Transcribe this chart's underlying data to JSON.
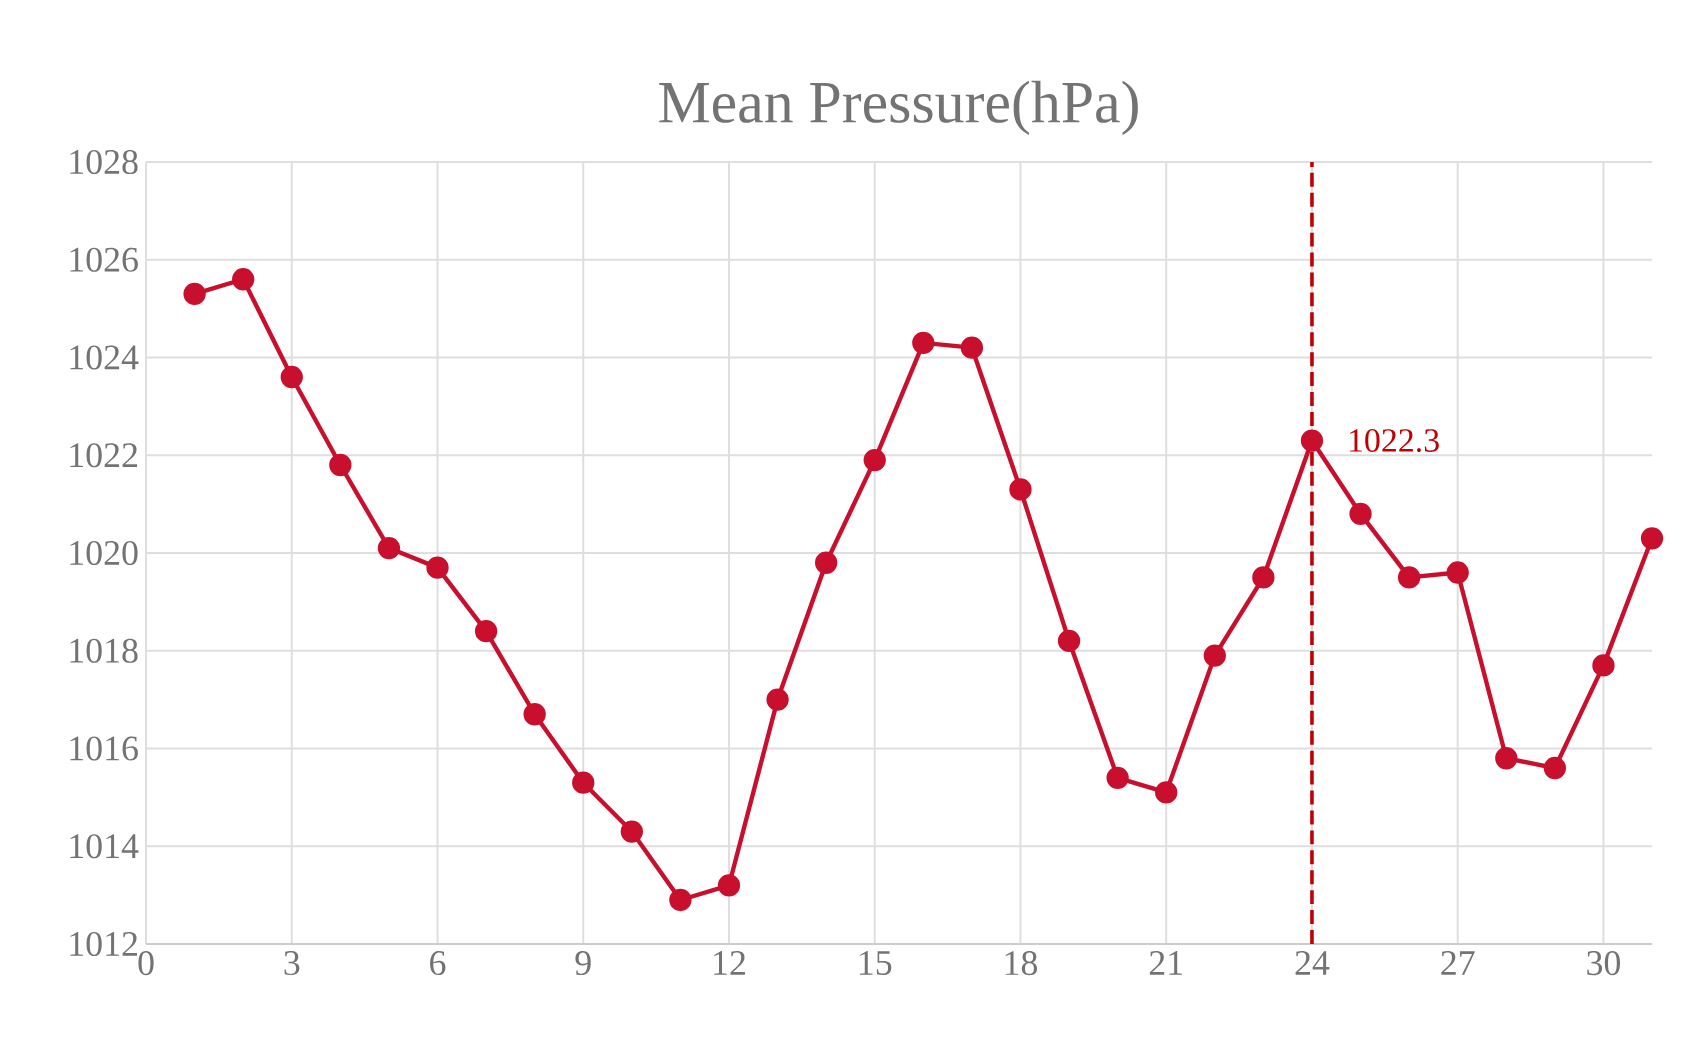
{
  "chart_data": {
    "type": "line",
    "title": "Mean Pressure(hPa)",
    "x": [
      1,
      2,
      3,
      4,
      5,
      6,
      7,
      8,
      9,
      10,
      11,
      12,
      13,
      14,
      15,
      16,
      17,
      18,
      19,
      20,
      21,
      22,
      23,
      24,
      25,
      26,
      27,
      28,
      29,
      30,
      31
    ],
    "series": [
      {
        "color": "#c8102e",
        "values": [
          1025.3,
          1025.6,
          1023.6,
          1021.8,
          1020.1,
          1019.7,
          1018.4,
          1016.7,
          1015.3,
          1014.3,
          1012.9,
          1013.2,
          1017.0,
          1019.8,
          1021.9,
          1024.3,
          1024.2,
          1021.3,
          1018.2,
          1015.4,
          1015.1,
          1017.9,
          1019.5,
          1022.3,
          1020.8,
          1019.5,
          1019.6,
          1015.8,
          1015.6,
          1017.7,
          1020.3
        ]
      }
    ],
    "xlim": [
      0,
      31
    ],
    "xticks": [
      0,
      3,
      6,
      9,
      12,
      15,
      18,
      21,
      24,
      27,
      30
    ],
    "ylim": [
      1012,
      1028
    ],
    "yticks": [
      1012,
      1014,
      1016,
      1018,
      1020,
      1022,
      1024,
      1026,
      1028
    ],
    "grid": true,
    "marker": "circle",
    "line_style": "solid",
    "ref_lines": [
      {
        "axis": "x",
        "value": 24,
        "color": "#c00000",
        "line_style": "dashed"
      }
    ],
    "annotations": [
      {
        "text": "1022.3",
        "x": 24,
        "y": 1022.3
      }
    ]
  }
}
